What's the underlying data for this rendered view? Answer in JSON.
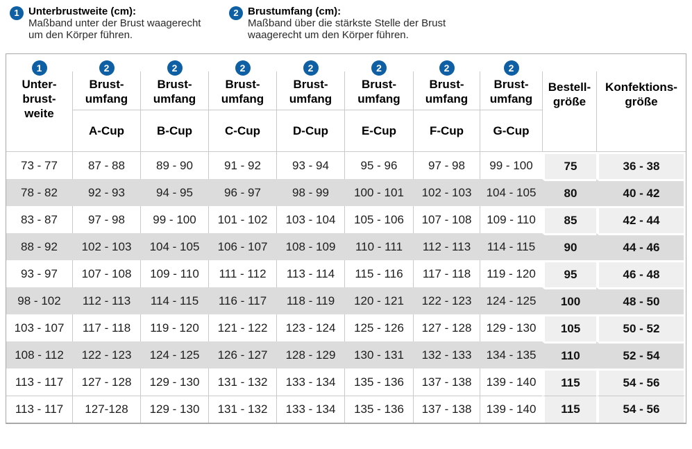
{
  "legend": {
    "items": [
      {
        "number": "1",
        "title": "Unterbrustweite (cm):",
        "lines": [
          "Maßband unter der Brust waagerecht",
          "um den Körper führen."
        ]
      },
      {
        "number": "2",
        "title": "Brustumfang (cm):",
        "lines": [
          "Maßband über die stärkste Stelle der Brust",
          "waagerecht um den Körper führen."
        ]
      }
    ]
  },
  "table": {
    "header": {
      "underbust_badge": "1",
      "underbust_lines": [
        "Unter-",
        "brust-",
        "weite"
      ],
      "bust_badge": "2",
      "bust_label_lines": [
        "Brust-",
        "umfang"
      ],
      "cups": [
        "A-Cup",
        "B-Cup",
        "C-Cup",
        "D-Cup",
        "E-Cup",
        "F-Cup",
        "G-Cup"
      ],
      "order_size_lines": [
        "Bestell-",
        "größe"
      ],
      "clothing_size_lines": [
        "Konfektions-",
        "größe"
      ]
    }
  },
  "chart_data": {
    "type": "table",
    "columns": [
      "Unterbrustweite",
      "Brustumfang A-Cup",
      "Brustumfang B-Cup",
      "Brustumfang C-Cup",
      "Brustumfang D-Cup",
      "Brustumfang E-Cup",
      "Brustumfang F-Cup",
      "Brustumfang G-Cup",
      "Bestellgröße",
      "Konfektionsgröße"
    ],
    "rows": [
      [
        "73 - 77",
        "87 - 88",
        "89 - 90",
        "91 - 92",
        "93 - 94",
        "95 - 96",
        "97 - 98",
        "99 - 100",
        "75",
        "36 - 38"
      ],
      [
        "78 - 82",
        "92 - 93",
        "94 - 95",
        "96 - 97",
        "98 - 99",
        "100 - 101",
        "102 - 103",
        "104 - 105",
        "80",
        "40 - 42"
      ],
      [
        "83 - 87",
        "97 - 98",
        "99 - 100",
        "101 - 102",
        "103 - 104",
        "105 - 106",
        "107 - 108",
        "109 - 110",
        "85",
        "42 - 44"
      ],
      [
        "88 - 92",
        "102 - 103",
        "104 - 105",
        "106 - 107",
        "108 - 109",
        "110 - 111",
        "112 - 113",
        "114 - 115",
        "90",
        "44 - 46"
      ],
      [
        "93 - 97",
        "107 - 108",
        "109 - 110",
        "111 - 112",
        "113 - 114",
        "115 - 116",
        "117 - 118",
        "119 - 120",
        "95",
        "46 - 48"
      ],
      [
        "98 - 102",
        "112 - 113",
        "114 - 115",
        "116 - 117",
        "118 - 119",
        "120 - 121",
        "122 - 123",
        "124 - 125",
        "100",
        "48 - 50"
      ],
      [
        "103 - 107",
        "117 - 118",
        "119 - 120",
        "121 - 122",
        "123 - 124",
        "125 - 126",
        "127 - 128",
        "129 - 130",
        "105",
        "50 - 52"
      ],
      [
        "108 - 112",
        "122 - 123",
        "124 - 125",
        "126 - 127",
        "128 - 129",
        "130 - 131",
        "132 - 133",
        "134 - 135",
        "110",
        "52 - 54"
      ],
      [
        "113 - 117",
        "127 - 128",
        "129 - 130",
        "131 - 132",
        "133 - 134",
        "135 - 136",
        "137 - 138",
        "139 - 140",
        "115",
        "54 - 56"
      ],
      [
        "113 - 117",
        "127-128",
        "129 - 130",
        "131 - 132",
        "133 - 134",
        "135 - 136",
        "137 - 138",
        "139 - 140",
        "115",
        "54 - 56"
      ]
    ],
    "shaded_rows": [
      1,
      3,
      5,
      7
    ]
  },
  "colors": {
    "accent_blue": "#0e5fa4",
    "shaded_row": "#dcdcdc",
    "side_column_light": "#efefef",
    "grid_line": "#c9c9c9"
  }
}
